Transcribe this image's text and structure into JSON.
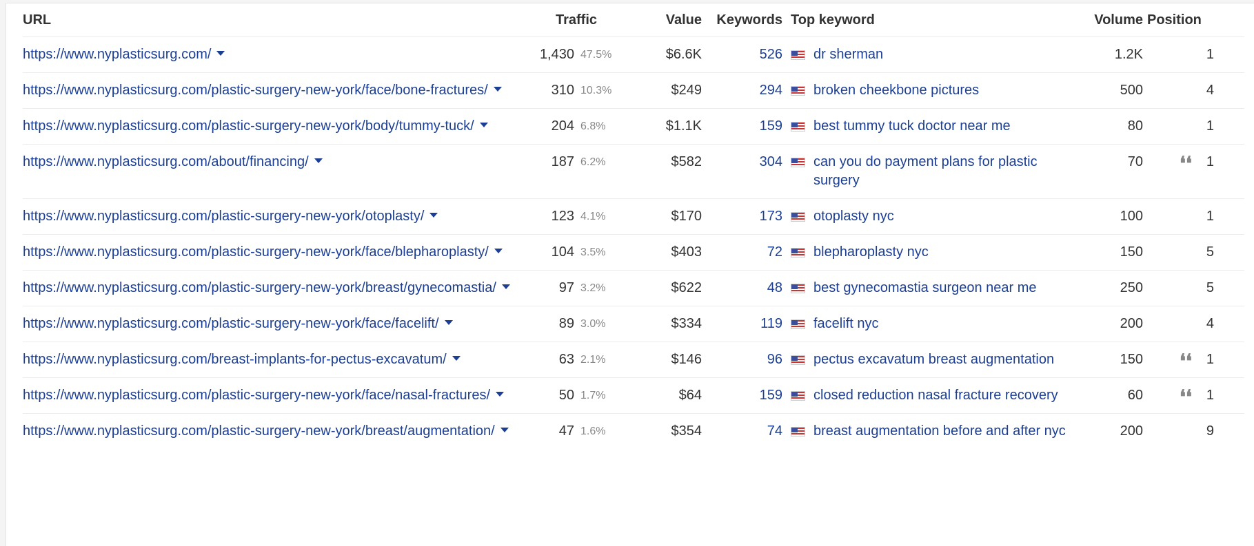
{
  "columns": {
    "url": "URL",
    "traffic": "Traffic",
    "value": "Value",
    "keywords": "Keywords",
    "top_keyword": "Top keyword",
    "volume": "Volume",
    "position": "Position"
  },
  "rows": [
    {
      "url": "https://www.nyplasticsurg.com/",
      "traffic": "1,430",
      "pct": "47.5%",
      "value": "$6.6K",
      "keywords": "526",
      "top_keyword": "dr sherman",
      "volume": "1.2K",
      "quote": "",
      "position": "1"
    },
    {
      "url": "https://www.nyplasticsurg.com/plastic-surgery-new-york/face/bone-fractures/",
      "traffic": "310",
      "pct": "10.3%",
      "value": "$249",
      "keywords": "294",
      "top_keyword": "broken cheekbone pictures",
      "volume": "500",
      "quote": "",
      "position": "4"
    },
    {
      "url": "https://www.nyplasticsurg.com/plastic-surgery-new-york/body/tummy-tuck/",
      "traffic": "204",
      "pct": "6.8%",
      "value": "$1.1K",
      "keywords": "159",
      "top_keyword": "best tummy tuck doctor near me",
      "volume": "80",
      "quote": "",
      "position": "1"
    },
    {
      "url": "https://www.nyplasticsurg.com/about/financing/",
      "traffic": "187",
      "pct": "6.2%",
      "value": "$582",
      "keywords": "304",
      "top_keyword": "can you do payment plans for plastic surgery",
      "volume": "70",
      "quote": "❛❛",
      "position": "1"
    },
    {
      "url": "https://www.nyplasticsurg.com/plastic-surgery-new-york/otoplasty/",
      "traffic": "123",
      "pct": "4.1%",
      "value": "$170",
      "keywords": "173",
      "top_keyword": "otoplasty nyc",
      "volume": "100",
      "quote": "",
      "position": "1"
    },
    {
      "url": "https://www.nyplasticsurg.com/plastic-surgery-new-york/face/blepharoplasty/",
      "traffic": "104",
      "pct": "3.5%",
      "value": "$403",
      "keywords": "72",
      "top_keyword": "blepharoplasty nyc",
      "volume": "150",
      "quote": "",
      "position": "5"
    },
    {
      "url": "https://www.nyplasticsurg.com/plastic-surgery-new-york/breast/gynecomastia/",
      "traffic": "97",
      "pct": "3.2%",
      "value": "$622",
      "keywords": "48",
      "top_keyword": "best gynecomastia surgeon near me",
      "volume": "250",
      "quote": "",
      "position": "5"
    },
    {
      "url": "https://www.nyplasticsurg.com/plastic-surgery-new-york/face/facelift/",
      "traffic": "89",
      "pct": "3.0%",
      "value": "$334",
      "keywords": "119",
      "top_keyword": "facelift nyc",
      "volume": "200",
      "quote": "",
      "position": "4"
    },
    {
      "url": "https://www.nyplasticsurg.com/breast-implants-for-pectus-excavatum/",
      "traffic": "63",
      "pct": "2.1%",
      "value": "$146",
      "keywords": "96",
      "top_keyword": "pectus excavatum breast augmentation",
      "volume": "150",
      "quote": "❛❛",
      "position": "1"
    },
    {
      "url": "https://www.nyplasticsurg.com/plastic-surgery-new-york/face/nasal-fractures/",
      "traffic": "50",
      "pct": "1.7%",
      "value": "$64",
      "keywords": "159",
      "top_keyword": "closed reduction nasal fracture recovery",
      "volume": "60",
      "quote": "❛❛",
      "position": "1"
    },
    {
      "url": "https://www.nyplasticsurg.com/plastic-surgery-new-york/breast/augmentation/",
      "traffic": "47",
      "pct": "1.6%",
      "value": "$354",
      "keywords": "74",
      "top_keyword": "breast augmentation before and after nyc",
      "volume": "200",
      "quote": "",
      "position": "9"
    }
  ],
  "icons": {
    "flag": "us-flag-icon",
    "dropdown": "caret-down-icon",
    "serp_feature": "quote-icon"
  },
  "colors": {
    "link": "#1c3f94",
    "text": "#333333",
    "muted": "#888888"
  }
}
